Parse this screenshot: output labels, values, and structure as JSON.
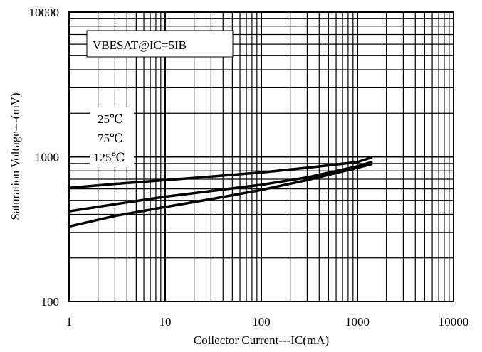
{
  "chart_data": {
    "type": "line",
    "title": "",
    "xlabel": "Collector Current---IC(mA)",
    "ylabel": "Saturation Voltage---(mV)",
    "xscale": "log",
    "yscale": "log",
    "xlim": [
      1,
      10000
    ],
    "ylim": [
      100,
      10000
    ],
    "grid": true,
    "x_ticks": [
      {
        "value": 1,
        "label": "1"
      },
      {
        "value": 10,
        "label": "10"
      },
      {
        "value": 100,
        "label": "100"
      },
      {
        "value": 1000,
        "label": "1000"
      },
      {
        "value": 10000,
        "label": "10000"
      }
    ],
    "y_ticks": [
      {
        "value": 100,
        "label": "100"
      },
      {
        "value": 1000,
        "label": "1000"
      },
      {
        "value": 10000,
        "label": "10000"
      }
    ],
    "annotation": "VBESAT@IC=5IB",
    "legend": {
      "placement": "left",
      "entries": [
        "25℃",
        "75℃",
        "125℃"
      ]
    },
    "series": [
      {
        "name": "25℃",
        "x": [
          1,
          3,
          10,
          30,
          100,
          300,
          1000,
          1400
        ],
        "y": [
          330,
          390,
          450,
          510,
          590,
          690,
          840,
          890
        ]
      },
      {
        "name": "75℃",
        "x": [
          1,
          3,
          10,
          30,
          100,
          300,
          1000,
          1400
        ],
        "y": [
          420,
          470,
          530,
          580,
          640,
          720,
          860,
          920
        ]
      },
      {
        "name": "125℃",
        "x": [
          1,
          3,
          10,
          30,
          100,
          300,
          1000,
          1400
        ],
        "y": [
          610,
          650,
          690,
          730,
          780,
          840,
          920,
          990
        ]
      }
    ],
    "colors": {
      "line": "#000000",
      "grid": "#000000",
      "background": "#ffffff"
    }
  }
}
